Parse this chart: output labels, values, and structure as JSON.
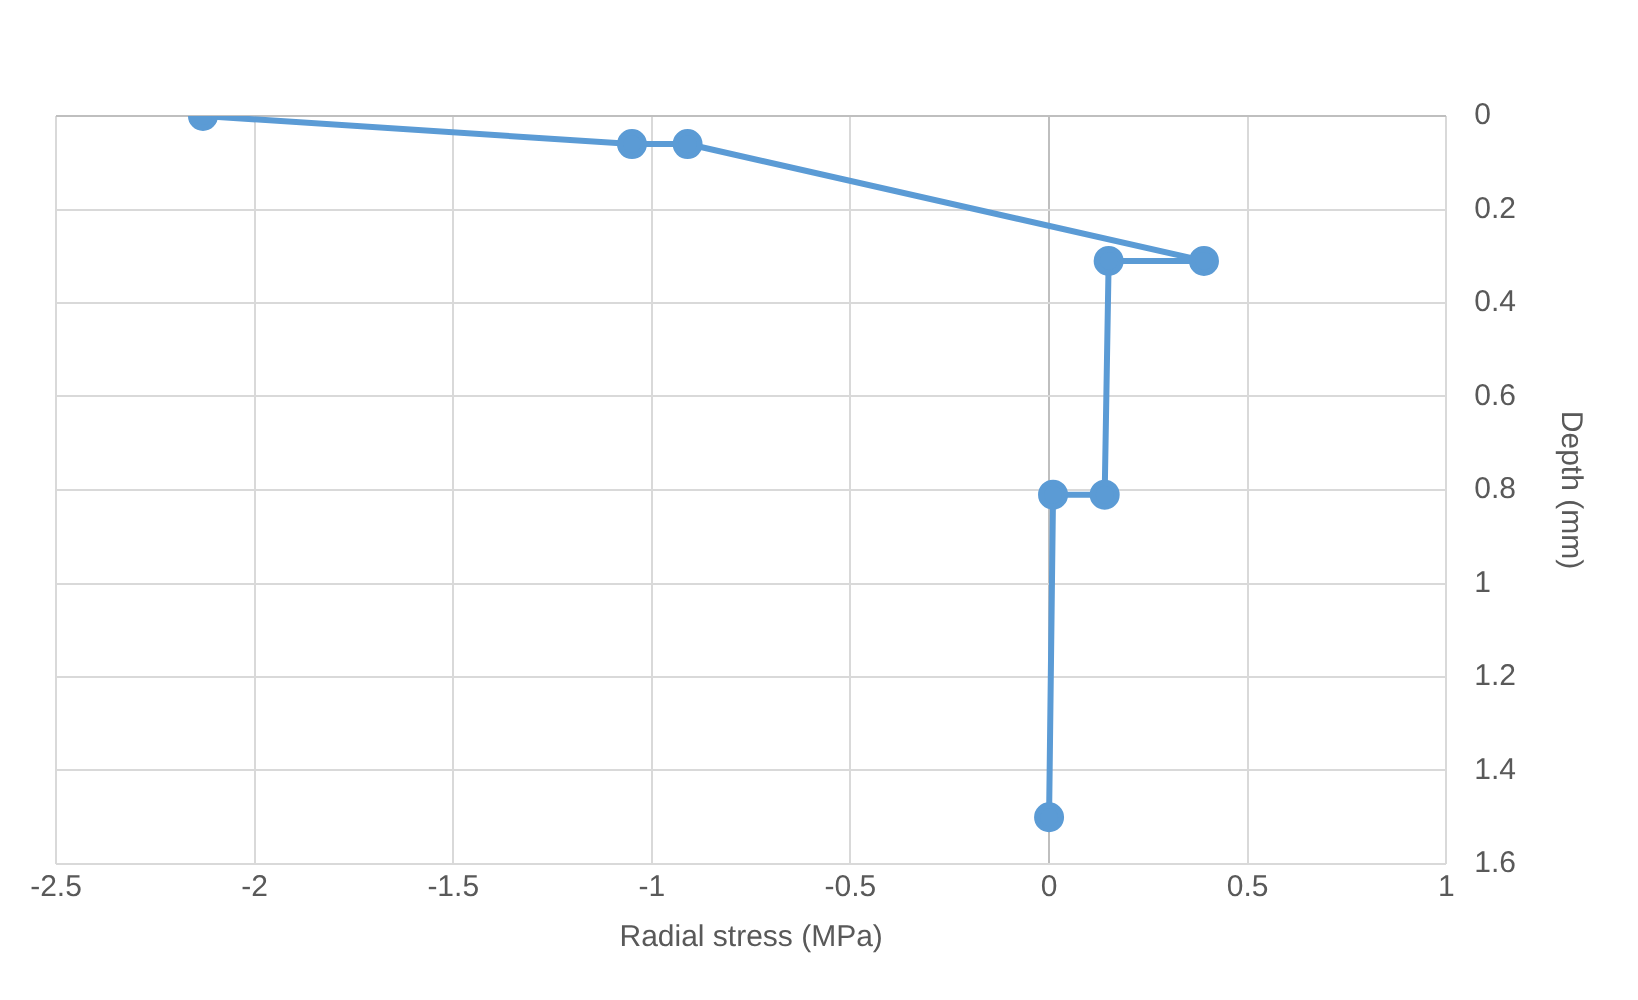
{
  "chart_data": {
    "type": "line",
    "xlabel": "Radial stress (MPa)",
    "ylabel": "Depth (mm)",
    "x": [
      -2.13,
      -1.05,
      -0.91,
      0.39,
      0.15,
      0.14,
      0.01,
      0
    ],
    "series": [
      {
        "color": "#5b9bd5",
        "values": [
          0,
          0.06,
          0.06,
          0.31,
          0.31,
          0.81,
          0.81,
          1.5
        ]
      }
    ],
    "xlim": [
      -2.5,
      1
    ],
    "xticks": [
      -2.5,
      -2,
      -1.5,
      -1,
      -0.5,
      0,
      0.5,
      1
    ],
    "ylim": [
      1.6,
      0
    ],
    "yticks": [
      0,
      0.2,
      0.4,
      0.6,
      0.8,
      1,
      1.2,
      1.4,
      1.6
    ],
    "grid": true,
    "legend": false,
    "marker": "circle",
    "line_style": "solid"
  }
}
